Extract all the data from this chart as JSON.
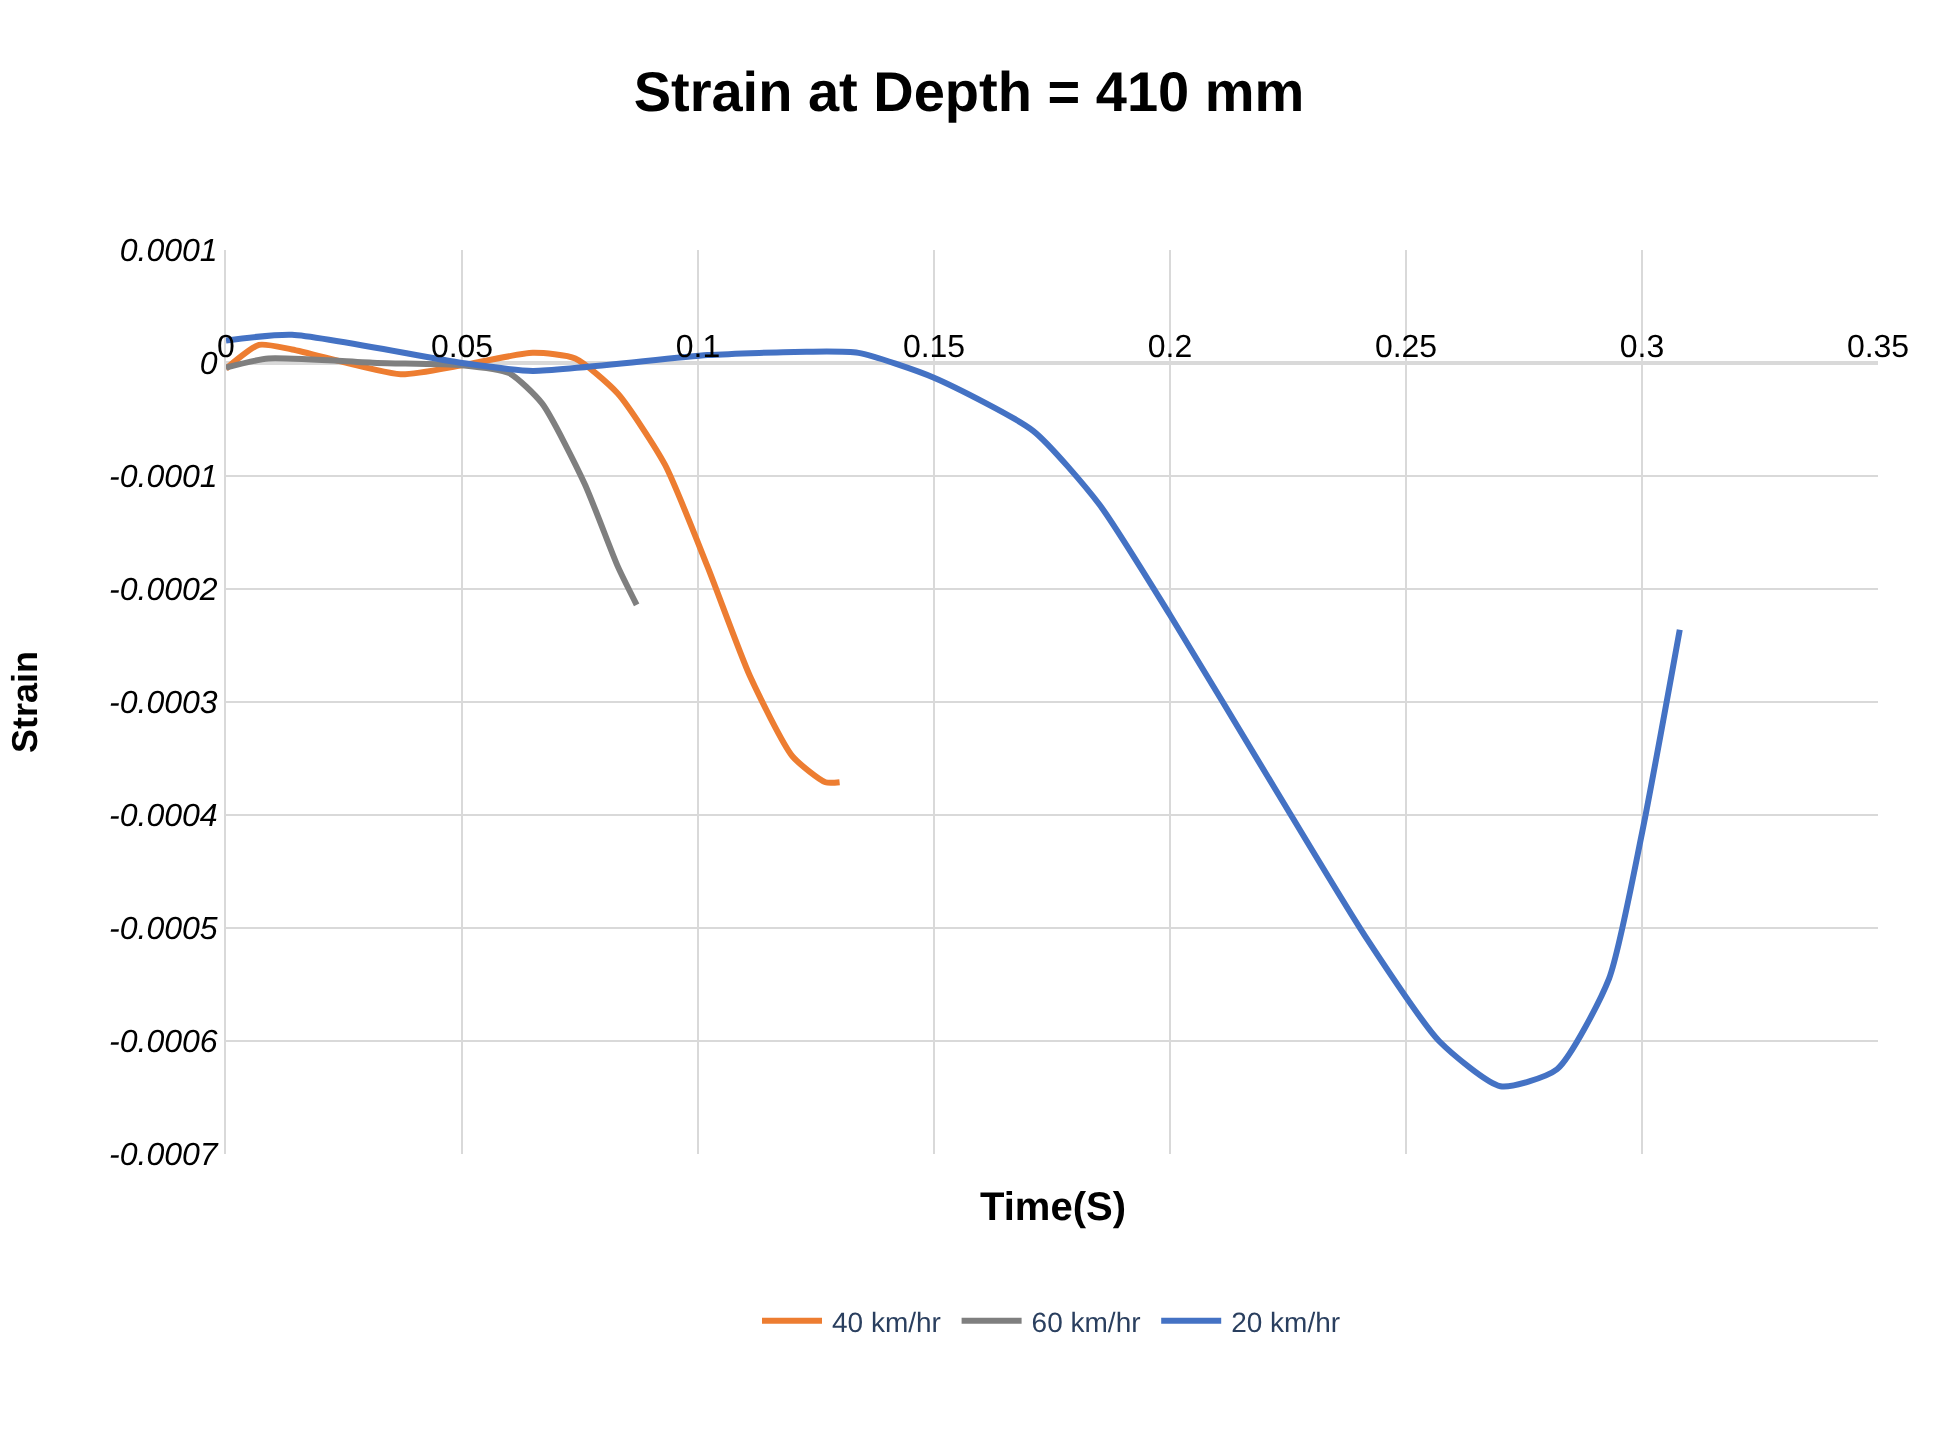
{
  "chart_data": {
    "type": "line",
    "title": "Strain at Depth = 410 mm",
    "xlabel": "Time(S)",
    "ylabel": "Strain",
    "xlim": [
      0,
      0.35
    ],
    "xticks": [
      0,
      0.05,
      0.1,
      0.15,
      0.2,
      0.25,
      0.3,
      0.35
    ],
    "ylim": [
      -0.0007,
      0.0001
    ],
    "yticks": [
      0.0001,
      0,
      -0.0001,
      -0.0002,
      -0.0003,
      -0.0004,
      -0.0005,
      -0.0006,
      -0.0007
    ],
    "grid": true,
    "legend": "bottom",
    "marker": "none",
    "line_style": "solid",
    "series": [
      {
        "name": "40 km/hr",
        "color": "#ed7d31",
        "x": [
          0,
          0.007,
          0.014,
          0.037,
          0.05,
          0.065,
          0.074,
          0.083,
          0.093,
          0.102,
          0.111,
          0.12,
          0.127,
          0.13
        ],
        "values": [
          -5e-06,
          1.6e-05,
          1.2e-05,
          -1e-05,
          -2e-06,
          9e-06,
          4e-06,
          -2.7e-05,
          -9e-05,
          -0.00018,
          -0.000277,
          -0.000348,
          -0.000371,
          -0.000371
        ]
      },
      {
        "name": "60 km/hr",
        "color": "#7f7f7f",
        "x": [
          0,
          0.009,
          0.032,
          0.05,
          0.06,
          0.067,
          0.076,
          0.083,
          0.087
        ],
        "values": [
          -4e-06,
          4e-06,
          0,
          -2e-06,
          -9e-06,
          -3.6e-05,
          -0.000107,
          -0.00018,
          -0.000214
        ]
      },
      {
        "name": "20 km/hr",
        "color": "#4472c4",
        "x": [
          0,
          0.014,
          0.05,
          0.065,
          0.102,
          0.123,
          0.134,
          0.15,
          0.171,
          0.185,
          0.2,
          0.222,
          0.241,
          0.257,
          0.27,
          0.282,
          0.293,
          0.3,
          0.308
        ],
        "values": [
          2e-05,
          2.5e-05,
          0,
          -7e-06,
          7e-06,
          1e-05,
          9e-06,
          -1.3e-05,
          -6e-05,
          -0.000125,
          -0.000223,
          -0.000375,
          -0.000505,
          -0.0006,
          -0.00064,
          -0.000625,
          -0.000545,
          -0.000416,
          -0.000236
        ]
      }
    ]
  }
}
